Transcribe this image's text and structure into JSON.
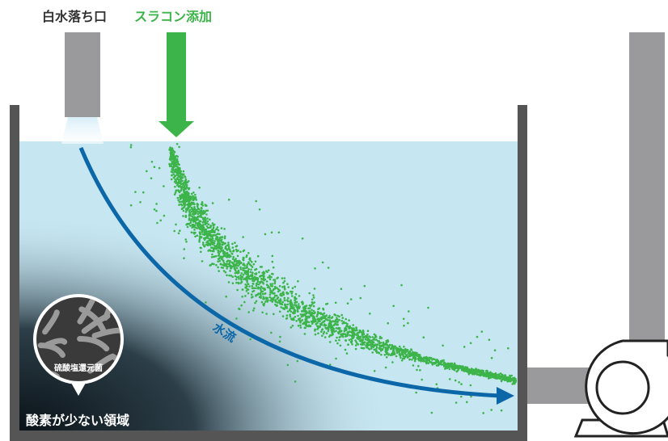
{
  "labels": {
    "outlet": "白水落ち口",
    "additive": "スラコン添加",
    "flow": "水流",
    "bacteria": "硫酸塩還元菌",
    "low_oxygen": "酸素が少ない領域"
  }
}
